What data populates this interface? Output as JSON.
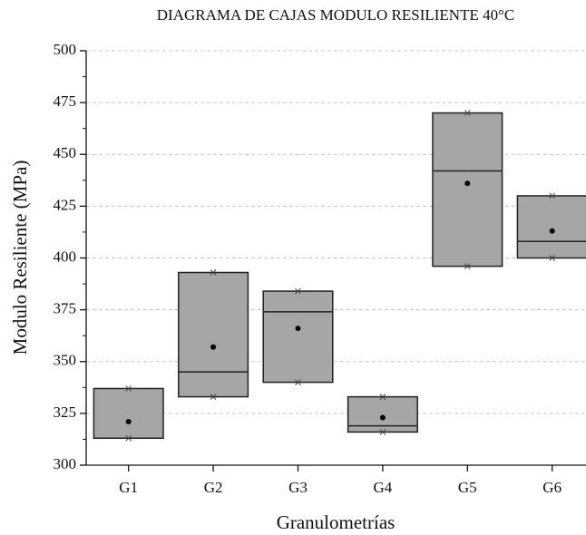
{
  "chart_data": {
    "type": "box",
    "title": "DIAGRAMA DE CAJAS MODULO RESILIENTE 40°C",
    "x_label": "Granulometrías",
    "y_label": "Modulo Resiliente (MPa)",
    "categories": [
      "G1",
      "G2",
      "G3",
      "G4",
      "G5",
      "G6"
    ],
    "q1": [
      313,
      333,
      340,
      316,
      396,
      400
    ],
    "median": [
      313,
      345,
      374,
      319,
      442,
      408
    ],
    "q3": [
      337,
      393,
      384,
      333,
      470,
      430
    ],
    "mean": [
      321,
      357,
      366,
      323,
      436,
      413
    ],
    "min": [
      313,
      333,
      340,
      316,
      396,
      400
    ],
    "max": [
      337,
      393,
      384,
      333,
      470,
      430
    ],
    "color": "#a6a6a6",
    "ylim": [
      300,
      500
    ],
    "yticks": [
      300,
      325,
      350,
      375,
      400,
      425,
      450,
      475,
      500
    ],
    "grid": true
  }
}
